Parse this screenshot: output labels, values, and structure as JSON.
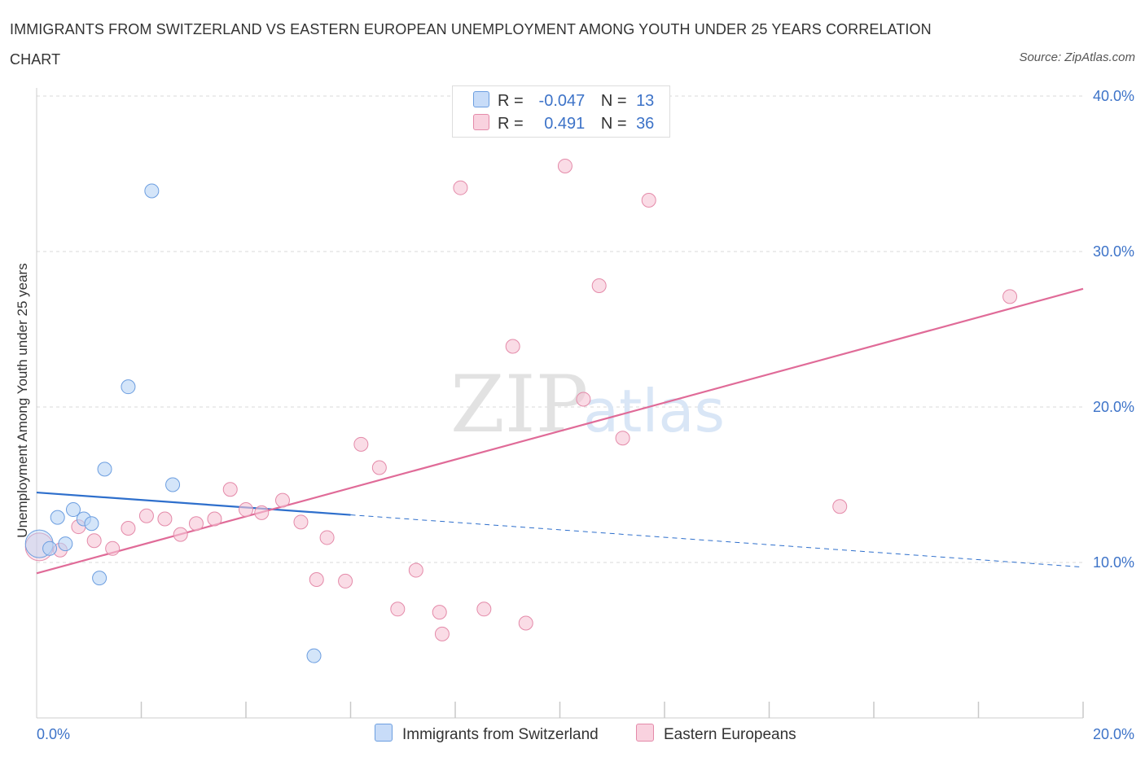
{
  "header": {
    "title": "IMMIGRANTS FROM SWITZERLAND VS EASTERN EUROPEAN UNEMPLOYMENT AMONG YOUTH UNDER 25 YEARS CORRELATION CHART",
    "source": "Source: ZipAtlas.com"
  },
  "legend": {
    "r_label": "R =",
    "n_label": "N =",
    "series1_r": "-0.047",
    "series1_n": "13",
    "series2_r": "0.491",
    "series2_n": "36"
  },
  "watermark": {
    "zip": "ZIP",
    "atlas": "atlas"
  },
  "colors": {
    "blue_fill": "#b8d3f5",
    "blue_stroke": "#6c9ee0",
    "blue_line": "#2e6fcc",
    "pink_fill": "#f6c4d5",
    "pink_stroke": "#e48aa9",
    "pink_line": "#e06b98",
    "axis_text": "#3d73c8"
  },
  "chart_data": {
    "type": "scatter",
    "title": "IMMIGRANTS FROM SWITZERLAND VS EASTERN EUROPEAN UNEMPLOYMENT AMONG YOUTH UNDER 25 YEARS CORRELATION CHART",
    "xlabel": "",
    "ylabel": "Unemployment Among Youth under 25 years",
    "xlim": [
      0,
      20
    ],
    "ylim": [
      0,
      40
    ],
    "x_tick_labels": [
      "0.0%",
      "20.0%"
    ],
    "y_ticks": [
      10,
      20,
      30,
      40
    ],
    "y_tick_labels": [
      "10.0%",
      "20.0%",
      "30.0%",
      "40.0%"
    ],
    "grid": true,
    "series": [
      {
        "name": "Immigrants from Switzerland",
        "color": "blue",
        "R": -0.047,
        "N": 13,
        "trend": {
          "x0": 0,
          "y0": 14.5,
          "x_solid_end": 6.0,
          "x1": 20,
          "y1": 9.7
        },
        "points": [
          {
            "x": 0.05,
            "y": 11.2,
            "size": "large"
          },
          {
            "x": 0.25,
            "y": 10.9
          },
          {
            "x": 0.4,
            "y": 12.9
          },
          {
            "x": 0.55,
            "y": 11.2
          },
          {
            "x": 0.7,
            "y": 13.4
          },
          {
            "x": 0.9,
            "y": 12.8
          },
          {
            "x": 1.05,
            "y": 12.5
          },
          {
            "x": 1.2,
            "y": 9.0
          },
          {
            "x": 1.3,
            "y": 16.0
          },
          {
            "x": 1.75,
            "y": 21.3
          },
          {
            "x": 2.2,
            "y": 33.9
          },
          {
            "x": 2.6,
            "y": 15.0
          },
          {
            "x": 5.3,
            "y": 4.0
          }
        ]
      },
      {
        "name": "Eastern Europeans",
        "color": "pink",
        "R": 0.491,
        "N": 36,
        "trend": {
          "x0": 0,
          "y0": 9.3,
          "x1": 20,
          "y1": 27.6
        },
        "points": [
          {
            "x": 0.05,
            "y": 11.0,
            "size": "large"
          },
          {
            "x": 0.45,
            "y": 10.8
          },
          {
            "x": 0.8,
            "y": 12.3
          },
          {
            "x": 1.1,
            "y": 11.4
          },
          {
            "x": 1.45,
            "y": 10.9
          },
          {
            "x": 1.75,
            "y": 12.2
          },
          {
            "x": 2.1,
            "y": 13.0
          },
          {
            "x": 2.45,
            "y": 12.8
          },
          {
            "x": 2.75,
            "y": 11.8
          },
          {
            "x": 3.05,
            "y": 12.5
          },
          {
            "x": 3.4,
            "y": 12.8
          },
          {
            "x": 3.7,
            "y": 14.7
          },
          {
            "x": 4.0,
            "y": 13.4
          },
          {
            "x": 4.3,
            "y": 13.2
          },
          {
            "x": 4.7,
            "y": 14.0
          },
          {
            "x": 5.05,
            "y": 12.6
          },
          {
            "x": 5.35,
            "y": 8.9
          },
          {
            "x": 5.55,
            "y": 11.6
          },
          {
            "x": 5.9,
            "y": 8.8
          },
          {
            "x": 6.2,
            "y": 17.6
          },
          {
            "x": 6.55,
            "y": 16.1
          },
          {
            "x": 6.9,
            "y": 7.0
          },
          {
            "x": 7.25,
            "y": 9.5
          },
          {
            "x": 7.7,
            "y": 6.8
          },
          {
            "x": 7.75,
            "y": 5.4
          },
          {
            "x": 8.1,
            "y": 34.1
          },
          {
            "x": 8.55,
            "y": 7.0
          },
          {
            "x": 9.1,
            "y": 23.9
          },
          {
            "x": 9.35,
            "y": 6.1
          },
          {
            "x": 10.1,
            "y": 35.5
          },
          {
            "x": 10.45,
            "y": 20.5
          },
          {
            "x": 10.75,
            "y": 27.8
          },
          {
            "x": 11.2,
            "y": 18.0
          },
          {
            "x": 11.7,
            "y": 33.3
          },
          {
            "x": 15.35,
            "y": 13.6
          },
          {
            "x": 18.6,
            "y": 27.1
          }
        ]
      }
    ]
  }
}
